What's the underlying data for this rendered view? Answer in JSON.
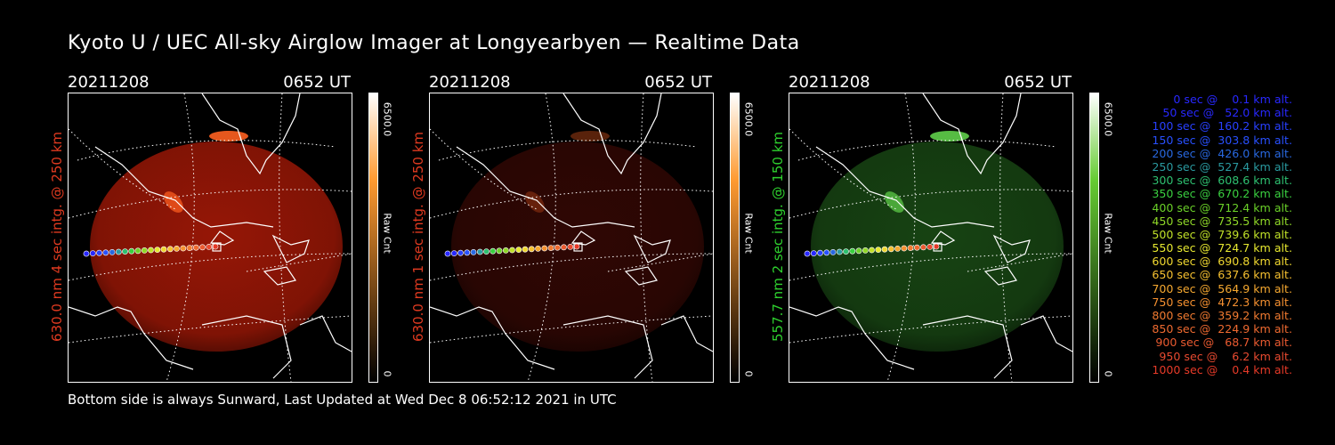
{
  "title": "Kyoto U / UEC All-sky Airglow Imager at Longyearbyen — Realtime Data",
  "footer": "Bottom side is always Sunward, Last Updated at Wed Dec  8 06:52:12 2021 in UTC",
  "colorbar": {
    "max_label": "6500.0",
    "min_label": "0",
    "title": "Raw Cnt"
  },
  "panels": [
    {
      "date": "20211208",
      "time": "0652 UT",
      "ylabel": "630.0 nm 4 sec intg. @ 250 km",
      "label_color": "#e03a20",
      "tint": "#c81e08",
      "colorbar_top": "#ffffff",
      "colorbar_mid": "#ff9a30",
      "colorbar_bottom": "#000000",
      "brightness": 0.75
    },
    {
      "date": "20211208",
      "time": "0652 UT",
      "ylabel": "630.0 nm 1 sec intg. @ 250 km",
      "label_color": "#e03a20",
      "tint": "#6a1008",
      "colorbar_top": "#ffffff",
      "colorbar_mid": "#ff9a30",
      "colorbar_bottom": "#000000",
      "brightness": 0.45
    },
    {
      "date": "20211208",
      "time": "0652 UT",
      "ylabel": "557.7 nm 2 sec intg. @ 150 km",
      "label_color": "#2ed12e",
      "tint": "#2a7a22",
      "colorbar_top": "#ffffff",
      "colorbar_mid": "#66cc33",
      "colorbar_bottom": "#000000",
      "brightness": 0.55
    }
  ],
  "legend": [
    {
      "text": "   0 sec @    0.1 km alt.",
      "color": "#2828ff"
    },
    {
      "text": "  50 sec @   52.0 km alt.",
      "color": "#2828ff"
    },
    {
      "text": " 100 sec @  160.2 km alt.",
      "color": "#2840ff"
    },
    {
      "text": " 150 sec @  303.8 km alt.",
      "color": "#2850ff"
    },
    {
      "text": " 200 sec @  426.0 km alt.",
      "color": "#2868e0"
    },
    {
      "text": " 250 sec @  527.4 km alt.",
      "color": "#2a9aa0"
    },
    {
      "text": " 300 sec @  608.6 km alt.",
      "color": "#2ec070"
    },
    {
      "text": " 350 sec @  670.2 km alt.",
      "color": "#3ad040"
    },
    {
      "text": " 400 sec @  712.4 km alt.",
      "color": "#6ad028"
    },
    {
      "text": " 450 sec @  735.5 km alt.",
      "color": "#90d828"
    },
    {
      "text": " 500 sec @  739.6 km alt.",
      "color": "#c0e028"
    },
    {
      "text": " 550 sec @  724.7 km alt.",
      "color": "#e6e830"
    },
    {
      "text": " 600 sec @  690.8 km alt.",
      "color": "#f0d830"
    },
    {
      "text": " 650 sec @  637.6 km alt.",
      "color": "#f5c030"
    },
    {
      "text": " 700 sec @  564.9 km alt.",
      "color": "#f5a830"
    },
    {
      "text": " 750 sec @  472.3 km alt.",
      "color": "#f59030"
    },
    {
      "text": " 800 sec @  359.2 km alt.",
      "color": "#f07a30"
    },
    {
      "text": " 850 sec @  224.9 km alt.",
      "color": "#ee6a30"
    },
    {
      "text": " 900 sec @   68.7 km alt.",
      "color": "#ea5a30"
    },
    {
      "text": " 950 sec @    6.2 km alt.",
      "color": "#e84a30"
    },
    {
      "text": "1000 sec @    0.4 km alt.",
      "color": "#e63a28"
    }
  ]
}
